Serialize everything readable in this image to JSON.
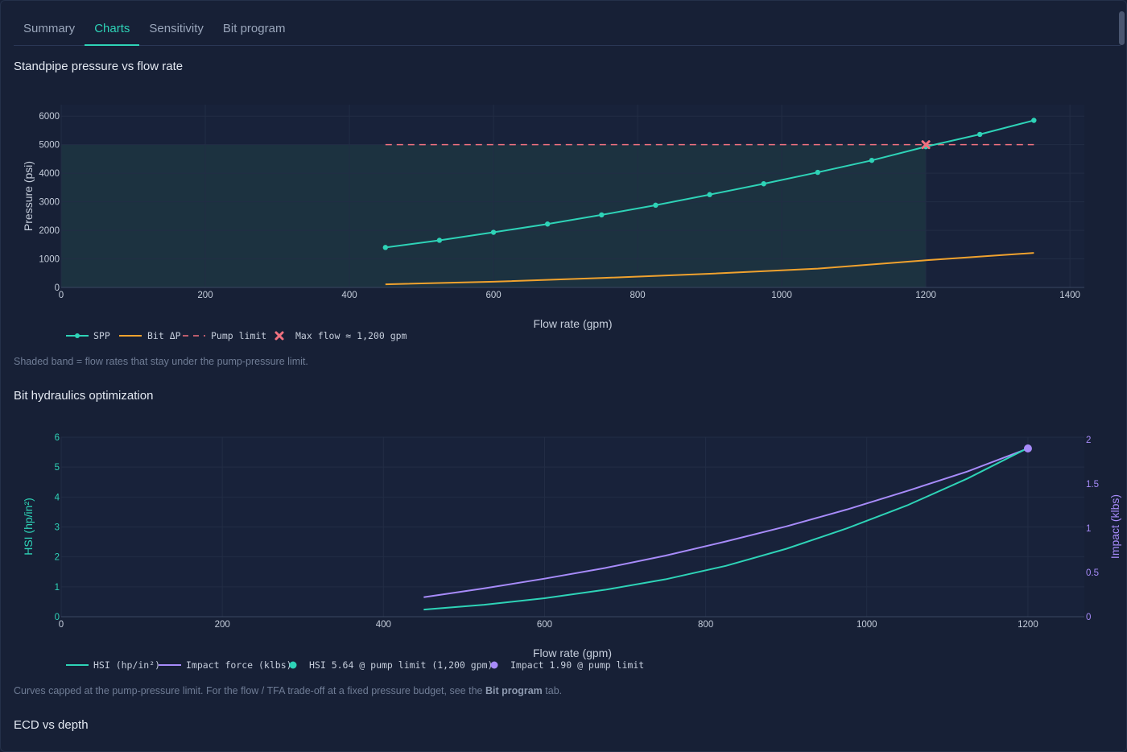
{
  "tabs": [
    {
      "label": "Summary",
      "active": false
    },
    {
      "label": "Charts",
      "active": true
    },
    {
      "label": "Sensitivity",
      "active": false
    },
    {
      "label": "Bit program",
      "active": false
    }
  ],
  "sections": {
    "spp_title": "Standpipe pressure vs flow rate",
    "spp_note": "Shaded band = flow rates that stay under the pump-pressure limit.",
    "hyd_title": "Bit hydraulics optimization",
    "hyd_note_pre": "Curves capped at the pump-pressure limit. For the flow / TFA trade-off at a fixed pressure budget, see the ",
    "hyd_note_bold": "Bit program",
    "hyd_note_post": " tab.",
    "ecd_title": "ECD vs depth"
  },
  "colors": {
    "teal": "#2ed3b7",
    "orange": "#f0a22e",
    "pink": "#f0717f",
    "purple": "#a78bfa",
    "band": "#1c3240"
  },
  "chart_data": [
    {
      "type": "line",
      "xlabel": "Flow rate (gpm)",
      "ylabel": "Pressure (psi)",
      "xlim": [
        0,
        1420
      ],
      "ylim": [
        0,
        6400
      ],
      "xticks": [
        0,
        200,
        400,
        600,
        800,
        1000,
        1200,
        1400
      ],
      "yticks": [
        0,
        1000,
        2000,
        3000,
        4000,
        5000,
        6000
      ],
      "grid": true,
      "legend_position": "bottom-left",
      "shaded_band": {
        "x": [
          0,
          1200
        ],
        "y": [
          0,
          5000
        ]
      },
      "series": [
        {
          "name": "SPP",
          "markers": true,
          "x": [
            450,
            525,
            600,
            675,
            750,
            825,
            900,
            975,
            1050,
            1125,
            1200,
            1275,
            1350
          ],
          "y": [
            1400,
            1650,
            1930,
            2220,
            2540,
            2880,
            3250,
            3630,
            4030,
            4450,
            4930,
            5360,
            5850
          ]
        },
        {
          "name": "Bit ΔP",
          "markers": false,
          "x": [
            450,
            600,
            750,
            900,
            1050,
            1200,
            1350
          ],
          "y": [
            110,
            200,
            330,
            480,
            660,
            950,
            1210
          ]
        },
        {
          "name": "Pump limit",
          "dashed": true,
          "x": [
            450,
            1350
          ],
          "y": [
            5000,
            5000
          ]
        }
      ],
      "annotations": [
        {
          "name": "Max flow ≈ 1,200 gpm",
          "x": 1200,
          "y": 5000,
          "marker": "x"
        }
      ]
    },
    {
      "type": "line",
      "xlabel": "Flow rate (gpm)",
      "ylabel": "HSI (hp/in²)",
      "ylabel_right": "Impact (klbs)",
      "xlim": [
        0,
        1270
      ],
      "ylim": [
        0,
        6
      ],
      "ylim_right": [
        0,
        2
      ],
      "xticks": [
        0,
        200,
        400,
        600,
        800,
        1000,
        1200
      ],
      "yticks": [
        0,
        1,
        2,
        3,
        4,
        5,
        6
      ],
      "yticks_right": [
        "0",
        "0.5",
        "1",
        "1.5",
        "2"
      ],
      "grid": true,
      "legend_position": "bottom-left",
      "series": [
        {
          "name": "HSI (hp/in²)",
          "axis": "left",
          "x": [
            450,
            525,
            600,
            675,
            750,
            825,
            900,
            975,
            1050,
            1125,
            1200
          ],
          "y": [
            0.24,
            0.4,
            0.62,
            0.9,
            1.25,
            1.7,
            2.27,
            2.95,
            3.72,
            4.62,
            5.64
          ]
        },
        {
          "name": "Impact force (klbs)",
          "axis": "right",
          "x": [
            450,
            525,
            600,
            675,
            750,
            825,
            900,
            975,
            1050,
            1125,
            1200
          ],
          "y": [
            0.22,
            0.32,
            0.43,
            0.55,
            0.69,
            0.85,
            1.02,
            1.21,
            1.42,
            1.64,
            1.9
          ]
        }
      ],
      "annotations": [
        {
          "name": "HSI 5.64 @ pump limit (1,200 gpm)",
          "x": 1200,
          "y": 5.64,
          "axis": "left"
        },
        {
          "name": "Impact 1.90 @ pump limit",
          "x": 1200,
          "y": 1.9,
          "axis": "right"
        }
      ]
    }
  ]
}
